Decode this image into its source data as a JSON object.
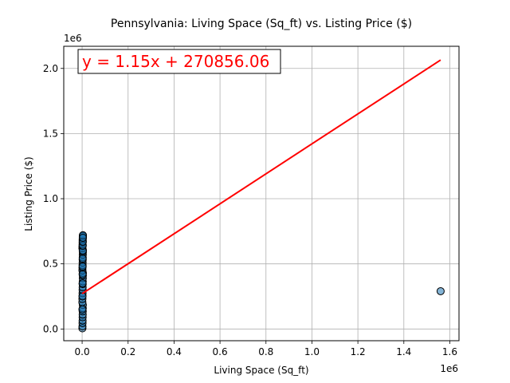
{
  "chart_data": {
    "type": "scatter",
    "title": "Pennsylvania: Living Space (Sq_ft) vs. Listing Price ($)",
    "xlabel": "Living Space (Sq_ft)",
    "ylabel": "Listing Price ($)",
    "x_offset_label": "1e6",
    "y_offset_label": "1e6",
    "xlim": [
      -80000,
      1640000
    ],
    "ylim": [
      -90000,
      2170000
    ],
    "x_ticks": [
      0,
      200000,
      400000,
      600000,
      800000,
      1000000,
      1200000,
      1400000,
      1600000
    ],
    "x_tick_labels": [
      "0.0",
      "0.2",
      "0.4",
      "0.6",
      "0.8",
      "1.0",
      "1.2",
      "1.4",
      "1.6"
    ],
    "y_ticks": [
      0,
      500000,
      1000000,
      1500000,
      2000000
    ],
    "y_tick_labels": [
      "0.0",
      "0.5",
      "1.0",
      "1.5",
      "2.0"
    ],
    "grid": true,
    "series": [
      {
        "x": [
          1200,
          1500,
          1800,
          2000,
          2200,
          2400,
          2600,
          2800,
          3000,
          1100,
          1300,
          1700,
          1900,
          2100,
          2300,
          2500,
          2700,
          2900,
          3100,
          3300,
          1400,
          1600,
          2050,
          2250,
          2450,
          2650,
          2850,
          3200,
          3400,
          1250,
          1550,
          1950,
          2150,
          2350,
          2550,
          2750,
          2950,
          3150,
          3500,
          1350,
          1650,
          1850,
          2060,
          2280,
          2480,
          2680,
          2880,
          3050,
          3250,
          1560000
        ],
        "y": [
          5000,
          20000,
          45000,
          65000,
          90000,
          110000,
          135000,
          160000,
          185000,
          205000,
          230000,
          255000,
          275000,
          300000,
          320000,
          345000,
          365000,
          390000,
          410000,
          430000,
          450000,
          470000,
          490000,
          510000,
          530000,
          550000,
          570000,
          590000,
          605000,
          620000,
          635000,
          650000,
          665000,
          680000,
          690000,
          700000,
          710000,
          715000,
          720000,
          150000,
          250000,
          350000,
          420000,
          480000,
          540000,
          600000,
          640000,
          670000,
          700000,
          290000
        ],
        "color": "#1f77b4",
        "edgecolor": "#000000"
      }
    ],
    "regression": {
      "slope": 1.15,
      "intercept": 270856.06,
      "x_range": [
        0,
        1560000
      ],
      "color": "#ff0000",
      "label": "y = 1.15x + 270856.06"
    }
  }
}
